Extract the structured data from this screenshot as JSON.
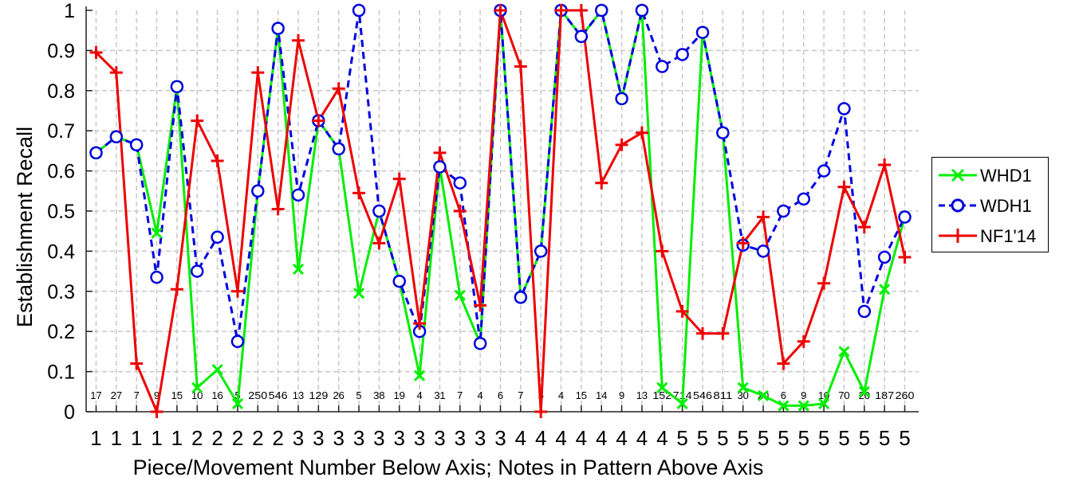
{
  "chart_data": {
    "type": "line",
    "title": "",
    "xlabel": "Piece/Movement Number Below Axis; Notes in Pattern Above Axis",
    "ylabel": "Establishment Recall",
    "ylim": [
      0,
      1
    ],
    "yticks": [
      "0",
      "0.1",
      "0.2",
      "0.3",
      "0.4",
      "0.5",
      "0.6",
      "0.7",
      "0.8",
      "0.9",
      "1"
    ],
    "grid": true,
    "legend_position": "right",
    "x_piece_labels": [
      "1",
      "1",
      "1",
      "1",
      "1",
      "2",
      "2",
      "2",
      "2",
      "2",
      "3",
      "3",
      "3",
      "3",
      "3",
      "3",
      "3",
      "3",
      "3",
      "3",
      "3",
      "4",
      "4",
      "4",
      "4",
      "4",
      "4",
      "4",
      "4",
      "5",
      "5",
      "5",
      "5",
      "5",
      "5",
      "5",
      "5",
      "5",
      "5",
      "5",
      "5"
    ],
    "x_note_counts": [
      "17",
      "27",
      "7",
      "9",
      "15",
      "10",
      "16",
      "5",
      "250",
      "546",
      "13",
      "129",
      "26",
      "5",
      "38",
      "19",
      "4",
      "31",
      "7",
      "4",
      "6",
      "7",
      "5",
      "4",
      "15",
      "14",
      "9",
      "13",
      "152",
      "714",
      "546",
      "811",
      "30",
      "20",
      "6",
      "9",
      "10",
      "70",
      "20",
      "187",
      "260"
    ],
    "series": [
      {
        "name": "WHD1",
        "color": "#00ee00",
        "line_style": "solid",
        "marker": "x",
        "values": [
          0.645,
          0.685,
          0.665,
          0.445,
          0.81,
          0.06,
          0.105,
          0.02,
          0.55,
          0.955,
          0.355,
          0.725,
          0.655,
          0.295,
          0.5,
          0.325,
          0.09,
          0.61,
          0.29,
          0.17,
          1.0,
          0.285,
          0.4,
          1.0,
          0.935,
          1.0,
          0.78,
          1.0,
          0.06,
          0.02,
          0.945,
          0.695,
          0.06,
          0.04,
          0.015,
          0.015,
          0.02,
          0.15,
          0.05,
          0.305,
          0.485
        ]
      },
      {
        "name": "WDH1",
        "color": "#0000e0",
        "line_style": "dashed",
        "marker": "o",
        "values": [
          0.645,
          0.685,
          0.665,
          0.335,
          0.81,
          0.35,
          0.435,
          0.175,
          0.55,
          0.955,
          0.54,
          0.725,
          0.655,
          1.0,
          0.5,
          0.325,
          0.2,
          0.61,
          0.57,
          0.17,
          1.0,
          0.285,
          0.4,
          1.0,
          0.935,
          1.0,
          0.78,
          1.0,
          0.86,
          0.89,
          0.945,
          0.695,
          0.415,
          0.4,
          0.5,
          0.53,
          0.6,
          0.755,
          0.25,
          0.385,
          0.485
        ]
      },
      {
        "name": "NF1'14",
        "color": "#ee0000",
        "line_style": "solid",
        "marker": "+",
        "values": [
          0.895,
          0.845,
          0.12,
          0.0,
          0.305,
          0.725,
          0.625,
          0.3,
          0.845,
          0.505,
          0.925,
          0.725,
          0.805,
          0.545,
          0.42,
          0.58,
          0.22,
          0.645,
          0.5,
          0.265,
          1.0,
          0.86,
          0.0,
          1.0,
          1.0,
          0.57,
          0.665,
          0.695,
          0.4,
          0.25,
          0.195,
          0.195,
          0.42,
          0.485,
          0.12,
          0.175,
          0.32,
          0.56,
          0.46,
          0.615,
          0.385
        ]
      }
    ]
  }
}
